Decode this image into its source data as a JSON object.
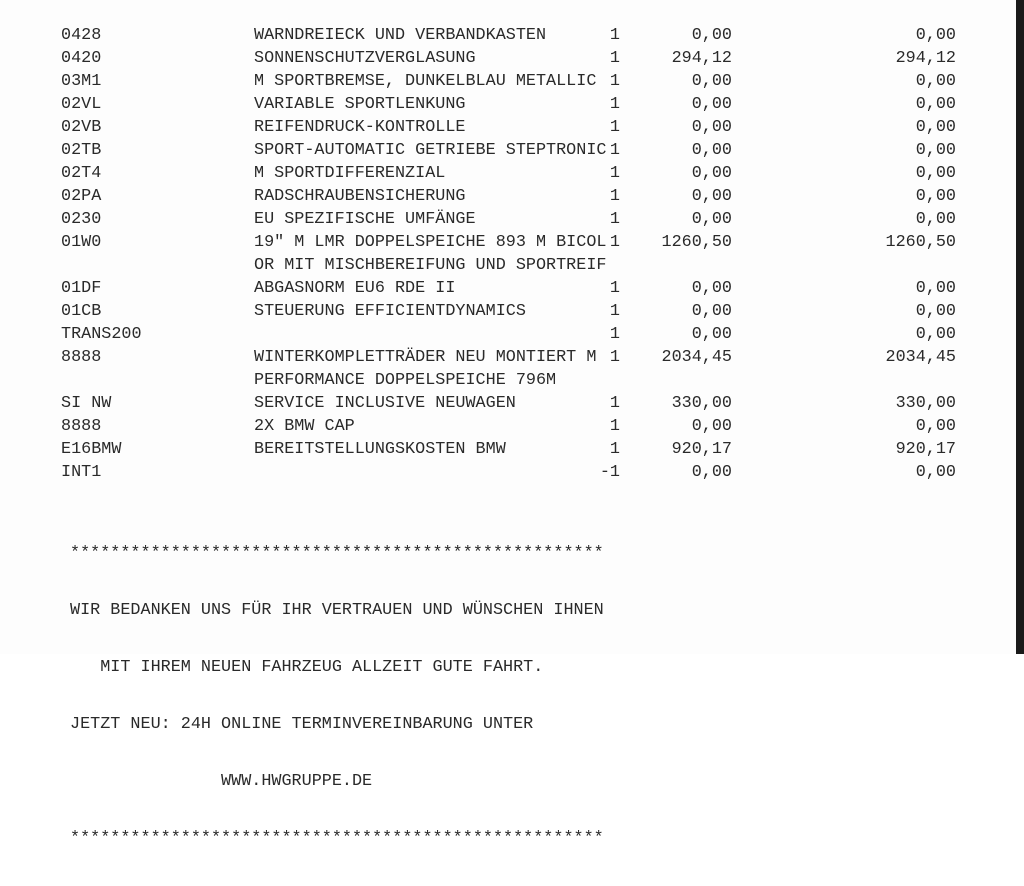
{
  "rows": [
    {
      "code": "0428",
      "desc": "WARNDREIECK UND VERBANDKASTEN",
      "qty": "1",
      "price": "0,00",
      "total": "0,00"
    },
    {
      "code": "0420",
      "desc": "SONNENSCHUTZVERGLASUNG",
      "qty": "1",
      "price": "294,12",
      "total": "294,12"
    },
    {
      "code": "03M1",
      "desc": "M SPORTBREMSE, DUNKELBLAU METALLIC",
      "qty": "1",
      "price": "0,00",
      "total": "0,00"
    },
    {
      "code": "02VL",
      "desc": "VARIABLE SPORTLENKUNG",
      "qty": "1",
      "price": "0,00",
      "total": "0,00"
    },
    {
      "code": "02VB",
      "desc": "REIFENDRUCK-KONTROLLE",
      "qty": "1",
      "price": "0,00",
      "total": "0,00"
    },
    {
      "code": "02TB",
      "desc": "SPORT-AUTOMATIC GETRIEBE STEPTRONIC",
      "qty": "1",
      "price": "0,00",
      "total": "0,00"
    },
    {
      "code": "02T4",
      "desc": "M SPORTDIFFERENZIAL",
      "qty": "1",
      "price": "0,00",
      "total": "0,00"
    },
    {
      "code": "02PA",
      "desc": "RADSCHRAUBENSICHERUNG",
      "qty": "1",
      "price": "0,00",
      "total": "0,00"
    },
    {
      "code": "0230",
      "desc": "EU SPEZIFISCHE UMFÄNGE",
      "qty": "1",
      "price": "0,00",
      "total": "0,00"
    },
    {
      "code": "01W0",
      "desc": "19\" M LMR DOPPELSPEICHE 893 M BICOL",
      "qty": "1",
      "price": "1260,50",
      "total": "1260,50"
    },
    {
      "code": "",
      "desc": "OR MIT MISCHBEREIFUNG UND SPORTREIF",
      "qty": "",
      "price": "",
      "total": ""
    },
    {
      "code": "01DF",
      "desc": "ABGASNORM EU6 RDE II",
      "qty": "1",
      "price": "0,00",
      "total": "0,00"
    },
    {
      "code": "01CB",
      "desc": "STEUERUNG EFFICIENTDYNAMICS",
      "qty": "1",
      "price": "0,00",
      "total": "0,00"
    },
    {
      "code": "TRANS200",
      "desc": "",
      "qty": "1",
      "price": "0,00",
      "total": "0,00"
    },
    {
      "code": "8888",
      "desc": "WINTERKOMPLETTRÄDER NEU MONTIERT M",
      "qty": "1",
      "price": "2034,45",
      "total": "2034,45"
    },
    {
      "code": "",
      "desc": "PERFORMANCE DOPPELSPEICHE 796M",
      "qty": "",
      "price": "",
      "total": ""
    },
    {
      "code": "SI NW",
      "desc": "SERVICE INCLUSIVE NEUWAGEN",
      "qty": "1",
      "price": "330,00",
      "total": "330,00"
    },
    {
      "code": "8888",
      "desc": "2X BMW CAP",
      "qty": "1",
      "price": "0,00",
      "total": "0,00"
    },
    {
      "code": "E16BMW",
      "desc": "BEREITSTELLUNGSKOSTEN BMW",
      "qty": "1",
      "price": "920,17",
      "total": "920,17"
    },
    {
      "code": "INT1",
      "desc": "",
      "qty": "-1",
      "price": "0,00",
      "total": "0,00"
    }
  ],
  "footer": {
    "stars_top": "*****************************************************",
    "line1": "WIR BEDANKEN UNS FÜR IHR VERTRAUEN UND WÜNSCHEN IHNEN",
    "line2": "   MIT IHREM NEUEN FAHRZEUG ALLZEIT GUTE FAHRT.",
    "line3": "JETZT NEU: 24H ONLINE TERMINVEREINBARUNG UNTER",
    "line4": "               WWW.HWGRUPPE.DE",
    "stars_bottom": "*****************************************************"
  }
}
